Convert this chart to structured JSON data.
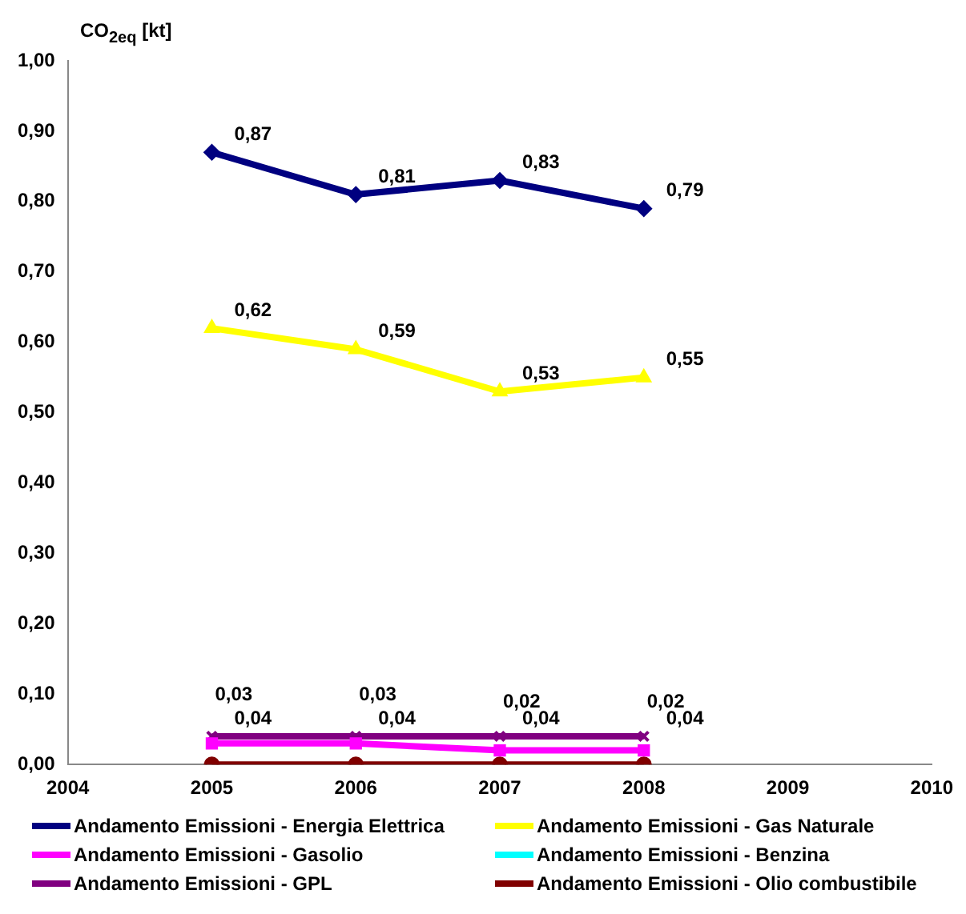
{
  "chart_data": {
    "type": "line",
    "ylabel": "CO$_{2eq}$ [kt]",
    "x": [
      2005,
      2006,
      2007,
      2008
    ],
    "xlim": [
      2004,
      2010
    ],
    "xticks": [
      2004,
      2005,
      2006,
      2007,
      2008,
      2009,
      2010
    ],
    "ylim": [
      0,
      1
    ],
    "yticks": [
      {
        "value": 0,
        "label": "0,00"
      },
      {
        "value": 0.1,
        "label": "0,10"
      },
      {
        "value": 0.2,
        "label": "0,20"
      },
      {
        "value": 0.3,
        "label": "0,30"
      },
      {
        "value": 0.4,
        "label": "0,40"
      },
      {
        "value": 0.5,
        "label": "0,50"
      },
      {
        "value": 0.6,
        "label": "0,60"
      },
      {
        "value": 0.7,
        "label": "0,70"
      },
      {
        "value": 0.8,
        "label": "0,80"
      },
      {
        "value": 0.9,
        "label": "0,90"
      },
      {
        "value": 1,
        "label": "1,00"
      }
    ],
    "grid": false,
    "legend": "bottom",
    "series": [
      {
        "name": "Andamento Emissioni - Energia Elettrica",
        "color": "#000080",
        "marker": "diamond",
        "values": [
          0.87,
          0.81,
          0.83,
          0.79
        ],
        "value_labels": [
          "0,87",
          "0,81",
          "0,83",
          "0,79"
        ]
      },
      {
        "name": "Andamento Emissioni - Gas Naturale",
        "color": "#ffff00",
        "marker": "triangle",
        "values": [
          0.62,
          0.59,
          0.53,
          0.55
        ],
        "value_labels": [
          "0,62",
          "0,59",
          "0,53",
          "0,55"
        ]
      },
      {
        "name": "Andamento Emissioni - Gasolio",
        "color": "#ff00ff",
        "marker": "square",
        "values": [
          0.03,
          0.03,
          0.02,
          0.02
        ],
        "value_labels": [
          "0,03",
          "0,03",
          "0,02",
          "0,02"
        ]
      },
      {
        "name": "Andamento Emissioni - Benzina",
        "color": "#00ffff",
        "marker": "star",
        "values": [
          null,
          null,
          null,
          null
        ]
      },
      {
        "name": "Andamento Emissioni - GPL",
        "color": "#800080",
        "marker": "cross",
        "values": [
          0.04,
          0.04,
          0.04,
          0.04
        ],
        "value_labels": [
          "0,04",
          "0,04",
          "0,04",
          "0,04"
        ]
      },
      {
        "name": "Andamento Emissioni - Olio combustibile",
        "color": "#800000",
        "marker": "circle",
        "values": [
          0,
          0,
          0,
          0
        ]
      }
    ]
  }
}
